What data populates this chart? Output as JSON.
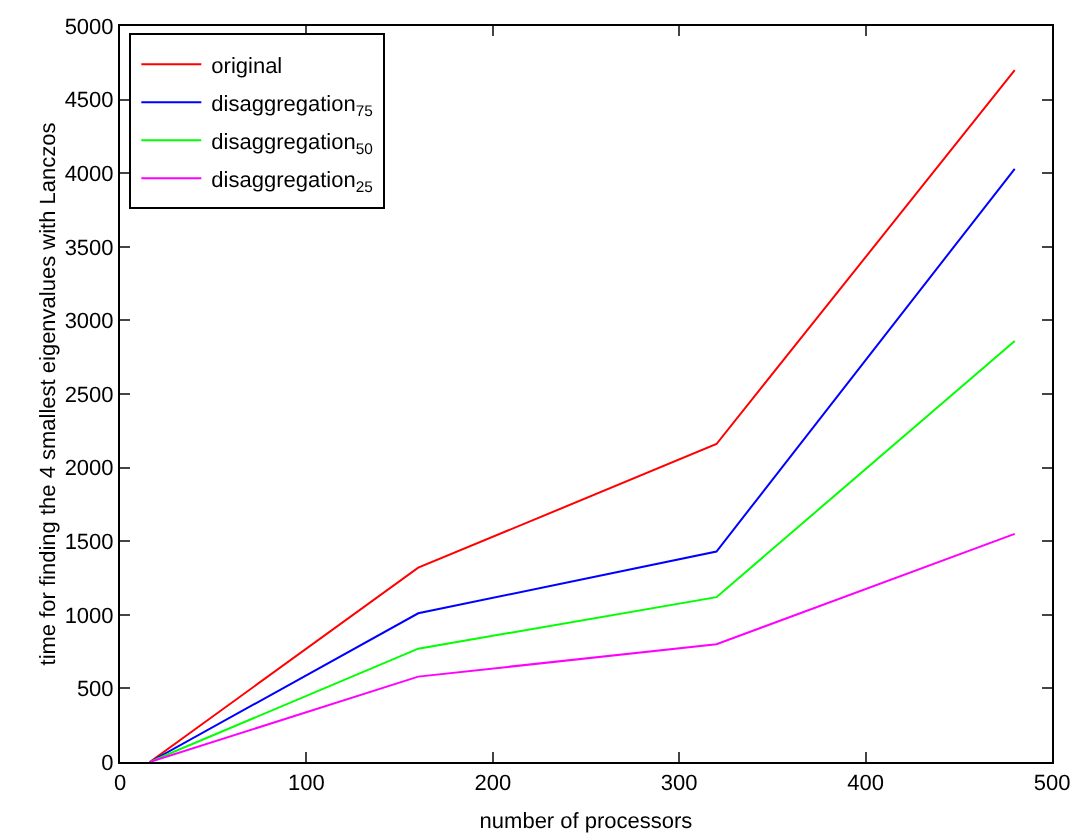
{
  "chart_data": {
    "type": "line",
    "xlabel": "number of processors",
    "ylabel": "time for finding the 4 smallest eigenvalues with Lanczos",
    "x": [
      16,
      160,
      320,
      480
    ],
    "series": [
      {
        "name": "original",
        "color": "#ff0000",
        "values": [
          0,
          1320,
          2160,
          4700
        ]
      },
      {
        "name": "disaggregation$_{75}$",
        "color": "#0000ff",
        "values": [
          0,
          1010,
          1430,
          4030
        ]
      },
      {
        "name": "disaggregation$_{50}$",
        "color": "#00ff00",
        "values": [
          0,
          770,
          1120,
          2860
        ]
      },
      {
        "name": "disaggregation$_{25}$",
        "color": "#ff00ff",
        "values": [
          0,
          580,
          800,
          1550
        ]
      }
    ],
    "xlim": [
      0,
      500
    ],
    "xticks": [
      0,
      100,
      200,
      300,
      400,
      500
    ],
    "ylim": [
      0,
      5000
    ],
    "yticks": [
      0,
      500,
      1000,
      1500,
      2000,
      2500,
      3000,
      3500,
      4000,
      4500,
      5000
    ],
    "grid": false,
    "legend": "top left",
    "marker": "none",
    "line_style": "solid"
  }
}
